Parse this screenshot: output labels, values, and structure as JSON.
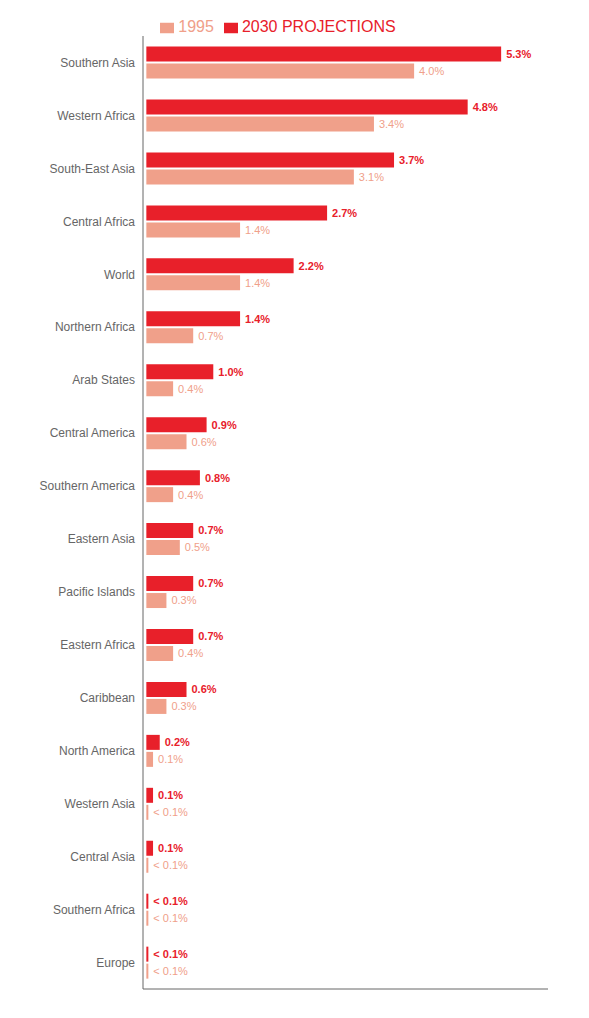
{
  "chart_data": {
    "type": "bar",
    "orientation": "horizontal",
    "categories": [
      "Southern Asia",
      "Western Africa",
      "South-East Asia",
      "Central Africa",
      "World",
      "Northern Africa",
      "Arab States",
      "Central America",
      "Southern America",
      "Eastern Asia",
      "Pacific Islands",
      "Eastern Africa",
      "Caribbean",
      "North America",
      "Western Asia",
      "Central Asia",
      "Southern Africa",
      "Europe"
    ],
    "series": [
      {
        "name": "2030 PROJECTIONS",
        "color": "#e8202a",
        "values": [
          5.3,
          4.8,
          3.7,
          2.7,
          2.2,
          1.4,
          1.0,
          0.9,
          0.8,
          0.7,
          0.7,
          0.7,
          0.6,
          0.2,
          0.1,
          0.1,
          0.03,
          0.03
        ],
        "value_labels": [
          "5.3%",
          "4.8%",
          "3.7%",
          "2.7%",
          "2.2%",
          "1.4%",
          "1.0%",
          "0.9%",
          "0.8%",
          "0.7%",
          "0.7%",
          "0.7%",
          "0.6%",
          "0.2%",
          "0.1%",
          "0.1%",
          "< 0.1%",
          "< 0.1%"
        ]
      },
      {
        "name": "1995",
        "color": "#f0a08a",
        "values": [
          4.0,
          3.4,
          3.1,
          1.4,
          1.4,
          0.7,
          0.4,
          0.6,
          0.4,
          0.5,
          0.3,
          0.4,
          0.3,
          0.1,
          0.03,
          0.03,
          0.03,
          0.03
        ],
        "value_labels": [
          "4.0%",
          "3.4%",
          "3.1%",
          "1.4%",
          "1.4%",
          "0.7%",
          "0.4%",
          "0.6%",
          "0.4%",
          "0.5%",
          "0.3%",
          "0.4%",
          "0.3%",
          "0.1%",
          "< 0.1%",
          "< 0.1%",
          "< 0.1%",
          "< 0.1%"
        ]
      }
    ],
    "xlim": [
      -0.05,
      6.0
    ],
    "legend": "top",
    "data_labels": true,
    "tick_labels": "y",
    "grid": false
  }
}
